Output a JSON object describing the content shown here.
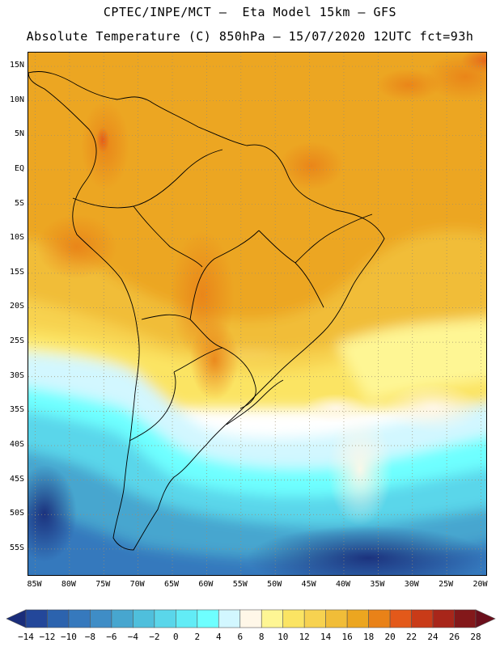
{
  "header": {
    "line1": "CPTEC/INPE/MCT –  Eta Model 15km – GFS",
    "line2": "Absolute Temperature (C) 850hPa – 15/07/2020 12UTC fct=93h"
  },
  "map": {
    "latitude_labels": [
      "15N",
      "10N",
      "5N",
      "EQ",
      "5S",
      "10S",
      "15S",
      "20S",
      "25S",
      "30S",
      "35S",
      "40S",
      "45S",
      "50S",
      "55S"
    ],
    "longitude_labels": [
      "85W",
      "80W",
      "75W",
      "70W",
      "65W",
      "60W",
      "55W",
      "50W",
      "45W",
      "40W",
      "35W",
      "30W",
      "25W",
      "20W"
    ],
    "lon_range": [
      -86,
      -19
    ],
    "lat_range": [
      -59,
      17
    ],
    "gridlines": "dotted"
  },
  "colorbar": {
    "labels": [
      "-14",
      "-12",
      "-10",
      "-8",
      "-6",
      "-4",
      "-2",
      "0",
      "2",
      "4",
      "6",
      "8",
      "10",
      "12",
      "14",
      "16",
      "18",
      "20",
      "22",
      "24",
      "26",
      "28"
    ],
    "colors": [
      "#1a2d7a",
      "#23479a",
      "#2c63ae",
      "#3679bd",
      "#3f8dc6",
      "#47a6cf",
      "#4fbfdc",
      "#5ad6ea",
      "#62ecf6",
      "#6effff",
      "#d2f7ff",
      "#fff7e8",
      "#fef694",
      "#fbe463",
      "#f7d250",
      "#f1bd38",
      "#eca620",
      "#e98218",
      "#e3591a",
      "#c93b18",
      "#a8261a",
      "#83181a",
      "#6b0f1c"
    ],
    "unit": "C"
  }
}
